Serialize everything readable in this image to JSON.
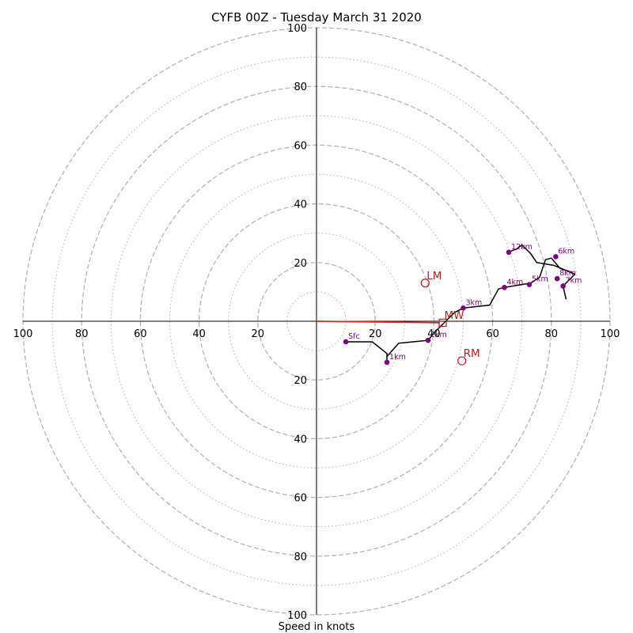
{
  "chart_data": {
    "type": "hodograph",
    "title": "CYFB 00Z - Tuesday March 31 2020",
    "xlabel": "Speed in knots",
    "ylabel": "",
    "xlim": [
      -100,
      100
    ],
    "ylim": [
      -100,
      100
    ],
    "major_rings": [
      20,
      40,
      60,
      80,
      100
    ],
    "minor_rings": [
      10,
      30,
      50,
      70,
      90
    ],
    "tick_values": [
      20,
      40,
      60,
      80,
      100
    ],
    "tick_labels": [
      "20",
      "40",
      "60",
      "80",
      "100"
    ],
    "hodograph_trace": [
      [
        10,
        -7
      ],
      [
        19,
        -7
      ],
      [
        24,
        -11
      ],
      [
        24,
        -14
      ],
      [
        24,
        -12
      ],
      [
        28,
        -7.5
      ],
      [
        38,
        -6.5
      ],
      [
        40,
        -4
      ],
      [
        44,
        0
      ],
      [
        47,
        3
      ],
      [
        50,
        4.5
      ],
      [
        59,
        5.5
      ],
      [
        62,
        11
      ],
      [
        64,
        11.5
      ],
      [
        70,
        12.5
      ],
      [
        73,
        13
      ],
      [
        76,
        15
      ],
      [
        77,
        18
      ],
      [
        78,
        21
      ],
      [
        80,
        21.5
      ],
      [
        83,
        18
      ],
      [
        86,
        17
      ],
      [
        88,
        16
      ],
      [
        81,
        19
      ],
      [
        75,
        20
      ],
      [
        73,
        23
      ],
      [
        70,
        26
      ],
      [
        68,
        24.5
      ],
      [
        65,
        23.5
      ]
    ],
    "tail_segment": [
      [
        88,
        16
      ],
      [
        84,
        12
      ],
      [
        85,
        7.5
      ]
    ],
    "height_markers": [
      {
        "label": "Sfc",
        "u": 10,
        "v": -7
      },
      {
        "label": "1km",
        "u": 24,
        "v": -14
      },
      {
        "label": "2km",
        "u": 38,
        "v": -6.5
      },
      {
        "label": "3km",
        "u": 50,
        "v": 4.5
      },
      {
        "label": "4km",
        "u": 64,
        "v": 11.5
      },
      {
        "label": "5km",
        "u": 72.5,
        "v": 12.5
      },
      {
        "label": "6km",
        "u": 81.5,
        "v": 22
      },
      {
        "label": "8km",
        "u": 82,
        "v": 14.5
      },
      {
        "label": "7km",
        "u": 84,
        "v": 12
      },
      {
        "label": "12km",
        "u": 65.5,
        "v": 23.5
      }
    ],
    "storm_motion": [
      {
        "label": "LM",
        "u": 37,
        "v": 13,
        "marker": "circle"
      },
      {
        "label": "MW",
        "u": 43,
        "v": -0.5,
        "marker": "square"
      },
      {
        "label": "RM",
        "u": 49.5,
        "v": -13.5,
        "marker": "circle"
      }
    ],
    "shear_vector": {
      "from": [
        0,
        0
      ],
      "to": [
        42,
        -0.5
      ],
      "color": "#e41a1c"
    },
    "colors": {
      "trace": "#000000",
      "markers": "#800080",
      "marker_text": "#800080",
      "storm_motion": "#b22222",
      "shear_vector": "#ee2222",
      "rings": "#b0b0b0",
      "axes": "#000000"
    },
    "grid": true
  }
}
